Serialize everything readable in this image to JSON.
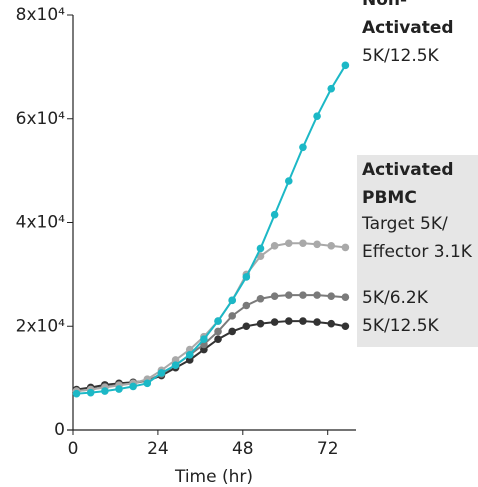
{
  "chart_data": {
    "type": "line",
    "x_label": "Time (hr)",
    "x": [
      1,
      5,
      9,
      13,
      17,
      21,
      25,
      29,
      33,
      37,
      41,
      45,
      49,
      53,
      57,
      61,
      65,
      69,
      73,
      77
    ],
    "series": [
      {
        "name": "5K/12.5K",
        "group": "Non-Activated",
        "color": "#1cb8c6",
        "values": [
          7000,
          7200,
          7500,
          7900,
          8400,
          9000,
          11000,
          12500,
          14500,
          17500,
          21000,
          25000,
          29500,
          35000,
          41500,
          48000,
          54500,
          60500,
          65800,
          70300
        ]
      },
      {
        "name": "Target 5K/ Effector 3.1K",
        "group": "Activated PBMC",
        "color": "#a9a9a9",
        "values": [
          7500,
          7800,
          8200,
          8600,
          9000,
          9800,
          11500,
          13500,
          15500,
          18000,
          21000,
          25000,
          30000,
          33500,
          35500,
          36000,
          36000,
          35800,
          35500,
          35200
        ]
      },
      {
        "name": "5K/6.2K",
        "group": "Activated PBMC",
        "color": "#7a7a7a",
        "values": [
          7500,
          7800,
          8300,
          8700,
          9000,
          9500,
          10800,
          12500,
          14500,
          16500,
          19000,
          22000,
          24000,
          25300,
          25800,
          26000,
          26000,
          26000,
          25800,
          25600
        ]
      },
      {
        "name": "5K/12.5K",
        "group": "Activated PBMC",
        "color": "#333333",
        "values": [
          7800,
          8200,
          8700,
          9000,
          9200,
          9500,
          10500,
          12000,
          13500,
          15500,
          17500,
          19000,
          20000,
          20500,
          20800,
          21000,
          21000,
          20800,
          20500,
          20000
        ]
      }
    ],
    "xlim": [
      0,
      80
    ],
    "xticks": [
      0,
      24,
      48,
      72
    ],
    "ylim": [
      0,
      80000
    ],
    "yticks": [
      0,
      {
        "value": 20000,
        "label": "2x10⁴"
      },
      {
        "value": 40000,
        "label": "4x10⁴"
      },
      {
        "value": 60000,
        "label": "6x10⁴"
      },
      {
        "value": 80000,
        "label": "8x10⁴"
      }
    ]
  }
}
